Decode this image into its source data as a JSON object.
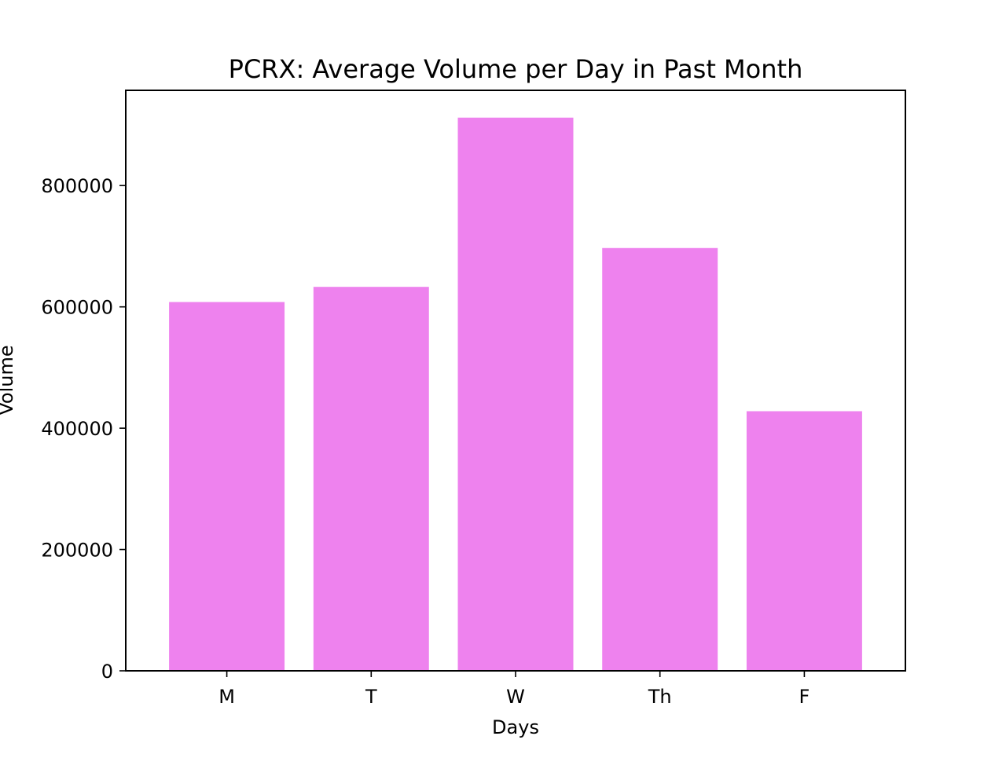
{
  "chart_data": {
    "type": "bar",
    "title": "PCRX: Average Volume per Day in Past Month",
    "xlabel": "Days",
    "ylabel": "Volume",
    "categories": [
      "M",
      "T",
      "W",
      "Th",
      "F"
    ],
    "values": [
      608000,
      633000,
      912000,
      697000,
      428000
    ],
    "ylim": [
      0,
      957000
    ],
    "yticks": [
      0,
      200000,
      400000,
      600000,
      800000
    ],
    "ytick_labels": [
      "0",
      "200000",
      "400000",
      "600000",
      "800000"
    ],
    "bar_color": "#ee82ee",
    "grid": false,
    "legend": "none"
  }
}
